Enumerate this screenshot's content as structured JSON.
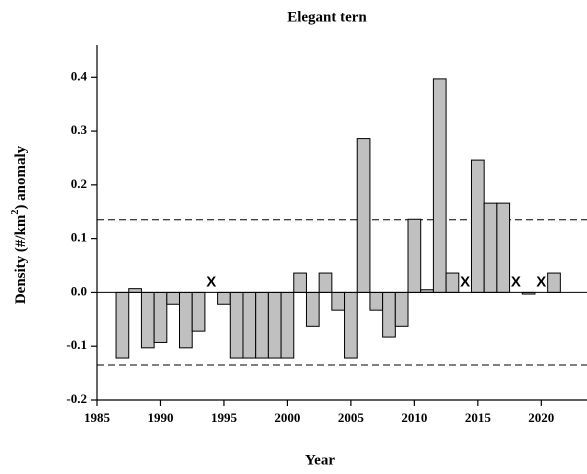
{
  "chart_data": {
    "type": "bar",
    "title": "Elegant tern",
    "x_label": "Year",
    "y_label": [
      "Density (#/km",
      "2",
      ") anomaly"
    ],
    "x": [
      1987,
      1988,
      1989,
      1990,
      1991,
      1992,
      1993,
      1995,
      1996,
      1997,
      1998,
      1999,
      2000,
      2001,
      2002,
      2003,
      2004,
      2005,
      2006,
      2007,
      2008,
      2009,
      2010,
      2011,
      2012,
      2013,
      2015,
      2016,
      2017,
      2019,
      2021
    ],
    "values": [
      -0.122,
      0.007,
      -0.103,
      -0.093,
      -0.022,
      -0.103,
      -0.072,
      -0.022,
      -0.122,
      -0.122,
      -0.122,
      -0.122,
      -0.122,
      0.036,
      -0.063,
      0.036,
      -0.033,
      -0.122,
      0.286,
      -0.033,
      -0.083,
      -0.063,
      0.136,
      0.005,
      0.397,
      0.036,
      0.246,
      0.166,
      0.166,
      -0.003,
      0.036
    ],
    "color": "#c0c0c0",
    "missing": {
      "label": "X",
      "x": [
        1994,
        2014,
        2018,
        2020
      ]
    },
    "reference_lines": [
      0.135,
      -0.135
    ],
    "xlim": [
      1985,
      2023.6
    ],
    "xticks": [
      1985,
      1990,
      1995,
      2000,
      2005,
      2010,
      2015,
      2020
    ],
    "ylim": [
      -0.2,
      0.46
    ],
    "yticks": [
      -0.2,
      -0.1,
      {
        "value": 0,
        "label": "0.0"
      },
      0.1,
      0.2,
      0.3,
      0.4
    ]
  }
}
